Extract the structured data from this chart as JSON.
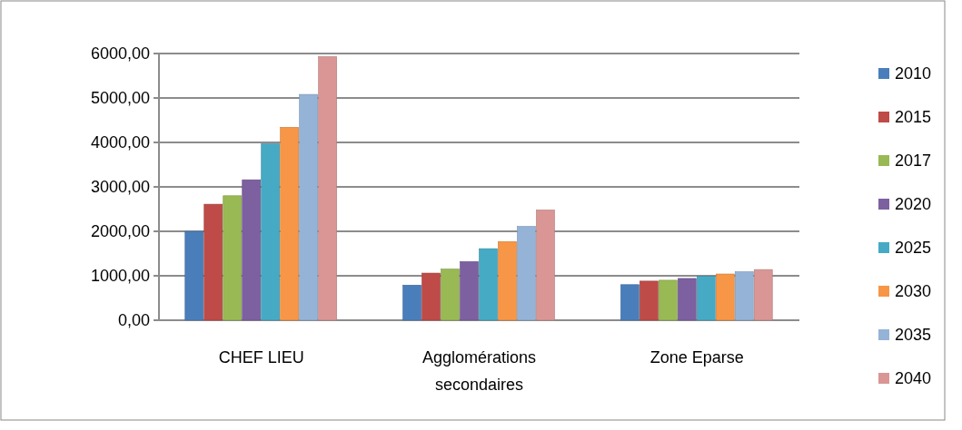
{
  "chart_data": {
    "type": "bar",
    "categories": [
      "CHEF LIEU",
      "Agglomérations secondaires",
      "Zone Eparse"
    ],
    "series": [
      {
        "name": "2010",
        "color": "#4a7ebb",
        "values": [
          2000,
          790,
          800
        ]
      },
      {
        "name": "2015",
        "color": "#be4b48",
        "values": [
          2610,
          1060,
          880
        ]
      },
      {
        "name": "2017",
        "color": "#98b954",
        "values": [
          2800,
          1150,
          900
        ]
      },
      {
        "name": "2020",
        "color": "#7d60a0",
        "values": [
          3160,
          1320,
          940
        ]
      },
      {
        "name": "2025",
        "color": "#46aac5",
        "values": [
          3970,
          1610,
          990
        ]
      },
      {
        "name": "2030",
        "color": "#f79646",
        "values": [
          4340,
          1770,
          1040
        ]
      },
      {
        "name": "2035",
        "color": "#95b3d7",
        "values": [
          5080,
          2110,
          1090
        ]
      },
      {
        "name": "2040",
        "color": "#d99694",
        "values": [
          5930,
          2480,
          1140
        ]
      }
    ],
    "ylim": [
      0,
      6000
    ],
    "yticks": [
      {
        "value": 0,
        "label": "0,00"
      },
      {
        "value": 1000,
        "label": "1000,00"
      },
      {
        "value": 2000,
        "label": "2000,00"
      },
      {
        "value": 3000,
        "label": "3000,00"
      },
      {
        "value": 4000,
        "label": "4000,00"
      },
      {
        "value": 5000,
        "label": "5000,00"
      },
      {
        "value": 6000,
        "label": "6000,00"
      }
    ],
    "grid": "y",
    "legend": "right"
  }
}
